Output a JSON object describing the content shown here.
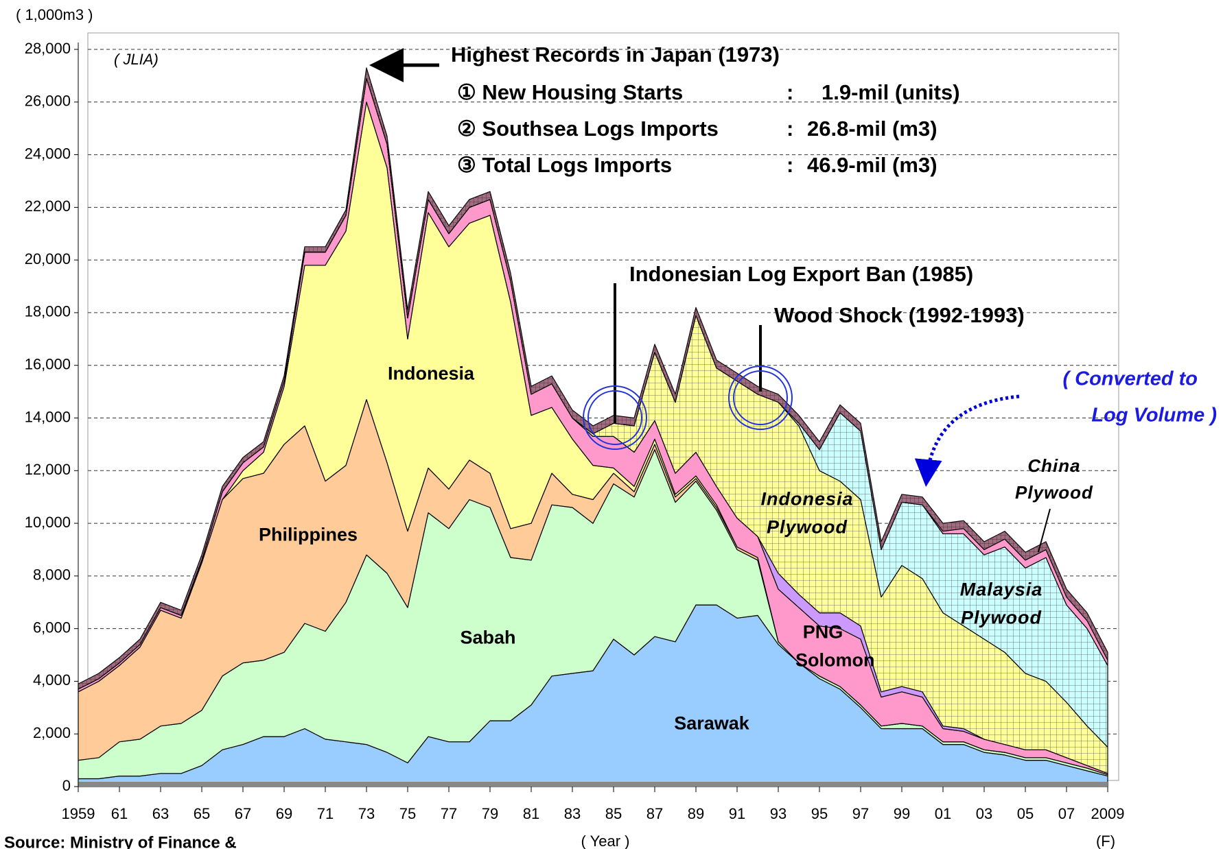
{
  "chart_data": {
    "type": "stacked-area",
    "y_unit": "( 1,000m3 )",
    "source_tag": "( JLIA)",
    "x_label": "( Year )",
    "forecast_mark": "(F)",
    "source": "Source:  Ministry of Finance &",
    "x": [
      1959,
      1960,
      1961,
      1962,
      1963,
      1964,
      1965,
      1966,
      1967,
      1968,
      1969,
      1970,
      1971,
      1972,
      1973,
      1974,
      1975,
      1976,
      1977,
      1978,
      1979,
      1980,
      1981,
      1982,
      1983,
      1984,
      1985,
      1986,
      1987,
      1988,
      1989,
      1990,
      1991,
      1992,
      1993,
      1994,
      1995,
      1996,
      1997,
      1998,
      1999,
      2000,
      2001,
      2002,
      2003,
      2004,
      2005,
      2006,
      2007,
      2008,
      2009
    ],
    "xlim": [
      1959,
      2009
    ],
    "xticks": [
      1959,
      {
        "value": 1961,
        "label": "61"
      },
      {
        "value": 1963,
        "label": "63"
      },
      {
        "value": 1965,
        "label": "65"
      },
      {
        "value": 1967,
        "label": "67"
      },
      {
        "value": 1969,
        "label": "69"
      },
      {
        "value": 1971,
        "label": "71"
      },
      {
        "value": 1973,
        "label": "73"
      },
      {
        "value": 1975,
        "label": "75"
      },
      {
        "value": 1977,
        "label": "77"
      },
      {
        "value": 1979,
        "label": "79"
      },
      {
        "value": 1981,
        "label": "81"
      },
      {
        "value": 1983,
        "label": "83"
      },
      {
        "value": 1985,
        "label": "85"
      },
      {
        "value": 1987,
        "label": "87"
      },
      {
        "value": 1989,
        "label": "89"
      },
      {
        "value": 1991,
        "label": "91"
      },
      {
        "value": 1993,
        "label": "93"
      },
      {
        "value": 1995,
        "label": "95"
      },
      {
        "value": 1997,
        "label": "97"
      },
      {
        "value": 1999,
        "label": "99"
      },
      {
        "value": 2001,
        "label": "01"
      },
      {
        "value": 2003,
        "label": "03"
      },
      {
        "value": 2005,
        "label": "05"
      },
      {
        "value": 2007,
        "label": "07"
      },
      2009
    ],
    "ylim": [
      0,
      28000
    ],
    "yticks": [
      0,
      {
        "value": 2000,
        "label": "2,000"
      },
      {
        "value": 4000,
        "label": "4,000"
      },
      {
        "value": 6000,
        "label": "6,000"
      },
      {
        "value": 8000,
        "label": "8,000"
      },
      {
        "value": 10000,
        "label": "10,000"
      },
      {
        "value": 12000,
        "label": "12,000"
      },
      {
        "value": 14000,
        "label": "14,000"
      },
      {
        "value": 16000,
        "label": "16,000"
      },
      {
        "value": 18000,
        "label": "18,000"
      },
      {
        "value": 20000,
        "label": "20,000"
      },
      {
        "value": 22000,
        "label": "22,000"
      },
      {
        "value": 24000,
        "label": "24,000"
      },
      {
        "value": 26000,
        "label": "26,000"
      },
      {
        "value": 28000,
        "label": "28,000"
      }
    ],
    "grid": true,
    "series": [
      {
        "name": "Sarawak",
        "color": "#99ccff",
        "values": [
          300,
          300,
          400,
          400,
          500,
          500,
          800,
          1400,
          1600,
          1900,
          1900,
          2200,
          1800,
          1700,
          1600,
          1300,
          900,
          1900,
          1700,
          1700,
          2500,
          2500,
          3100,
          4200,
          4300,
          4400,
          5600,
          5000,
          5700,
          5500,
          6900,
          6900,
          6400,
          6500,
          5400,
          4700,
          4100,
          3700,
          3000,
          2200,
          2200,
          2200,
          1600,
          1600,
          1300,
          1200,
          1000,
          1000,
          800,
          600,
          400
        ]
      },
      {
        "name": "Sabah",
        "color": "#ccffcc",
        "values": [
          700,
          800,
          1300,
          1400,
          1800,
          1900,
          2100,
          2800,
          3100,
          2900,
          3200,
          4000,
          4100,
          5300,
          7200,
          6800,
          5900,
          8500,
          8100,
          9200,
          8100,
          6200,
          5500,
          6500,
          6300,
          5600,
          5900,
          6000,
          7100,
          5300,
          4700,
          3600,
          2600,
          2100,
          100,
          0,
          100,
          100,
          100,
          100,
          200,
          100,
          100,
          100,
          100,
          100,
          100,
          100,
          100,
          100,
          50
        ]
      },
      {
        "name": "Philippines",
        "color": "#ffcc99",
        "values": [
          2600,
          2900,
          2900,
          3500,
          4400,
          4000,
          5600,
          6700,
          7000,
          7100,
          7900,
          7500,
          5700,
          5200,
          5900,
          4200,
          2900,
          1700,
          1500,
          1500,
          1300,
          1100,
          1400,
          1200,
          500,
          900,
          400,
          200,
          200,
          200,
          100,
          100,
          100,
          100,
          0,
          0,
          0,
          0,
          0,
          0,
          0,
          0,
          0,
          0,
          0,
          0,
          0,
          0,
          0,
          0,
          0
        ]
      },
      {
        "name": "Indonesia",
        "color": "#ffff99",
        "values": [
          0,
          0,
          0,
          0,
          0,
          0,
          0,
          0,
          300,
          800,
          2200,
          6100,
          8200,
          8900,
          11300,
          11200,
          7300,
          9700,
          9200,
          9000,
          9800,
          8600,
          4100,
          2500,
          2100,
          1300,
          200,
          200,
          200,
          100,
          100,
          100,
          0,
          0,
          0,
          0,
          0,
          0,
          0,
          0,
          0,
          0,
          0,
          0,
          0,
          0,
          0,
          0,
          0,
          0,
          0
        ]
      },
      {
        "name": "PNG Solomon",
        "color": "#ff99cc",
        "values": [
          100,
          100,
          100,
          100,
          100,
          100,
          100,
          300,
          300,
          200,
          200,
          500,
          500,
          600,
          900,
          900,
          800,
          500,
          500,
          600,
          600,
          800,
          800,
          900,
          800,
          1100,
          1200,
          1300,
          700,
          800,
          900,
          700,
          1100,
          800,
          2000,
          2100,
          1900,
          2200,
          2500,
          1100,
          1200,
          1100,
          500,
          400,
          400,
          300,
          300,
          300,
          200,
          100,
          50
        ]
      },
      {
        "color": "#cc99ff",
        "values": [
          0,
          0,
          0,
          0,
          0,
          0,
          0,
          0,
          0,
          0,
          0,
          0,
          0,
          0,
          0,
          0,
          0,
          0,
          0,
          0,
          0,
          0,
          0,
          0,
          0,
          0,
          0,
          0,
          0,
          0,
          0,
          0,
          0,
          0,
          600,
          500,
          500,
          600,
          500,
          200,
          200,
          200,
          100,
          100,
          0,
          0,
          0,
          0,
          0,
          0,
          0
        ]
      },
      {
        "name": "Indonesia Plywood",
        "color": "#ffff99",
        "pattern": "grid",
        "values": [
          0,
          0,
          0,
          0,
          0,
          0,
          0,
          0,
          0,
          0,
          0,
          0,
          0,
          0,
          0,
          0,
          0,
          0,
          0,
          0,
          0,
          0,
          0,
          0,
          0,
          100,
          500,
          1000,
          2600,
          2700,
          5200,
          4500,
          5200,
          5400,
          6500,
          6400,
          5400,
          5000,
          4800,
          3600,
          4600,
          4300,
          4300,
          3900,
          3800,
          3500,
          2900,
          2600,
          2100,
          1500,
          1000
        ]
      },
      {
        "name": "Malaysia Plywood",
        "color": "#ccffff",
        "pattern": "grid",
        "values": [
          0,
          0,
          0,
          0,
          0,
          0,
          0,
          0,
          0,
          0,
          0,
          0,
          0,
          0,
          0,
          0,
          0,
          0,
          0,
          0,
          0,
          0,
          0,
          0,
          0,
          0,
          0,
          0,
          0,
          0,
          0,
          0,
          0,
          0,
          0,
          100,
          800,
          2600,
          2600,
          1800,
          2400,
          2800,
          3000,
          3500,
          3200,
          4000,
          4000,
          4700,
          3700,
          3700,
          3100
        ]
      },
      {
        "name": "China Plywood",
        "color": "#ff99cc",
        "values": [
          0,
          0,
          0,
          0,
          0,
          0,
          0,
          0,
          0,
          0,
          0,
          0,
          0,
          0,
          0,
          0,
          0,
          0,
          0,
          0,
          0,
          0,
          0,
          0,
          0,
          0,
          0,
          0,
          0,
          0,
          0,
          0,
          0,
          0,
          0,
          0,
          0,
          0,
          0,
          0,
          0,
          0,
          100,
          200,
          200,
          300,
          300,
          300,
          300,
          300,
          200
        ]
      },
      {
        "color": "#a06d80",
        "pattern": "hatch",
        "values": [
          200,
          200,
          200,
          200,
          200,
          200,
          200,
          200,
          200,
          200,
          200,
          200,
          200,
          200,
          400,
          300,
          300,
          300,
          300,
          300,
          300,
          300,
          300,
          300,
          300,
          300,
          300,
          300,
          300,
          300,
          300,
          300,
          300,
          300,
          300,
          300,
          300,
          300,
          300,
          300,
          300,
          300,
          300,
          300,
          300,
          300,
          300,
          300,
          300,
          300,
          300
        ]
      }
    ],
    "annotations": {
      "peak": "Highest Records in Japan (1973)",
      "records": [
        [
          "① New Housing Starts",
          ":",
          "1.9-mil (units)"
        ],
        [
          "② Southsea Logs Imports",
          ":",
          "26.8-mil (m3)"
        ],
        [
          "③ Total Logs Imports",
          ":",
          "46.9-mil (m3)"
        ]
      ],
      "ban": "Indonesian Log Export Ban (1985)",
      "shock": "Wood Shock (1992-1993)",
      "converted": [
        "( Converted to",
        "Log Volume )"
      ]
    }
  }
}
